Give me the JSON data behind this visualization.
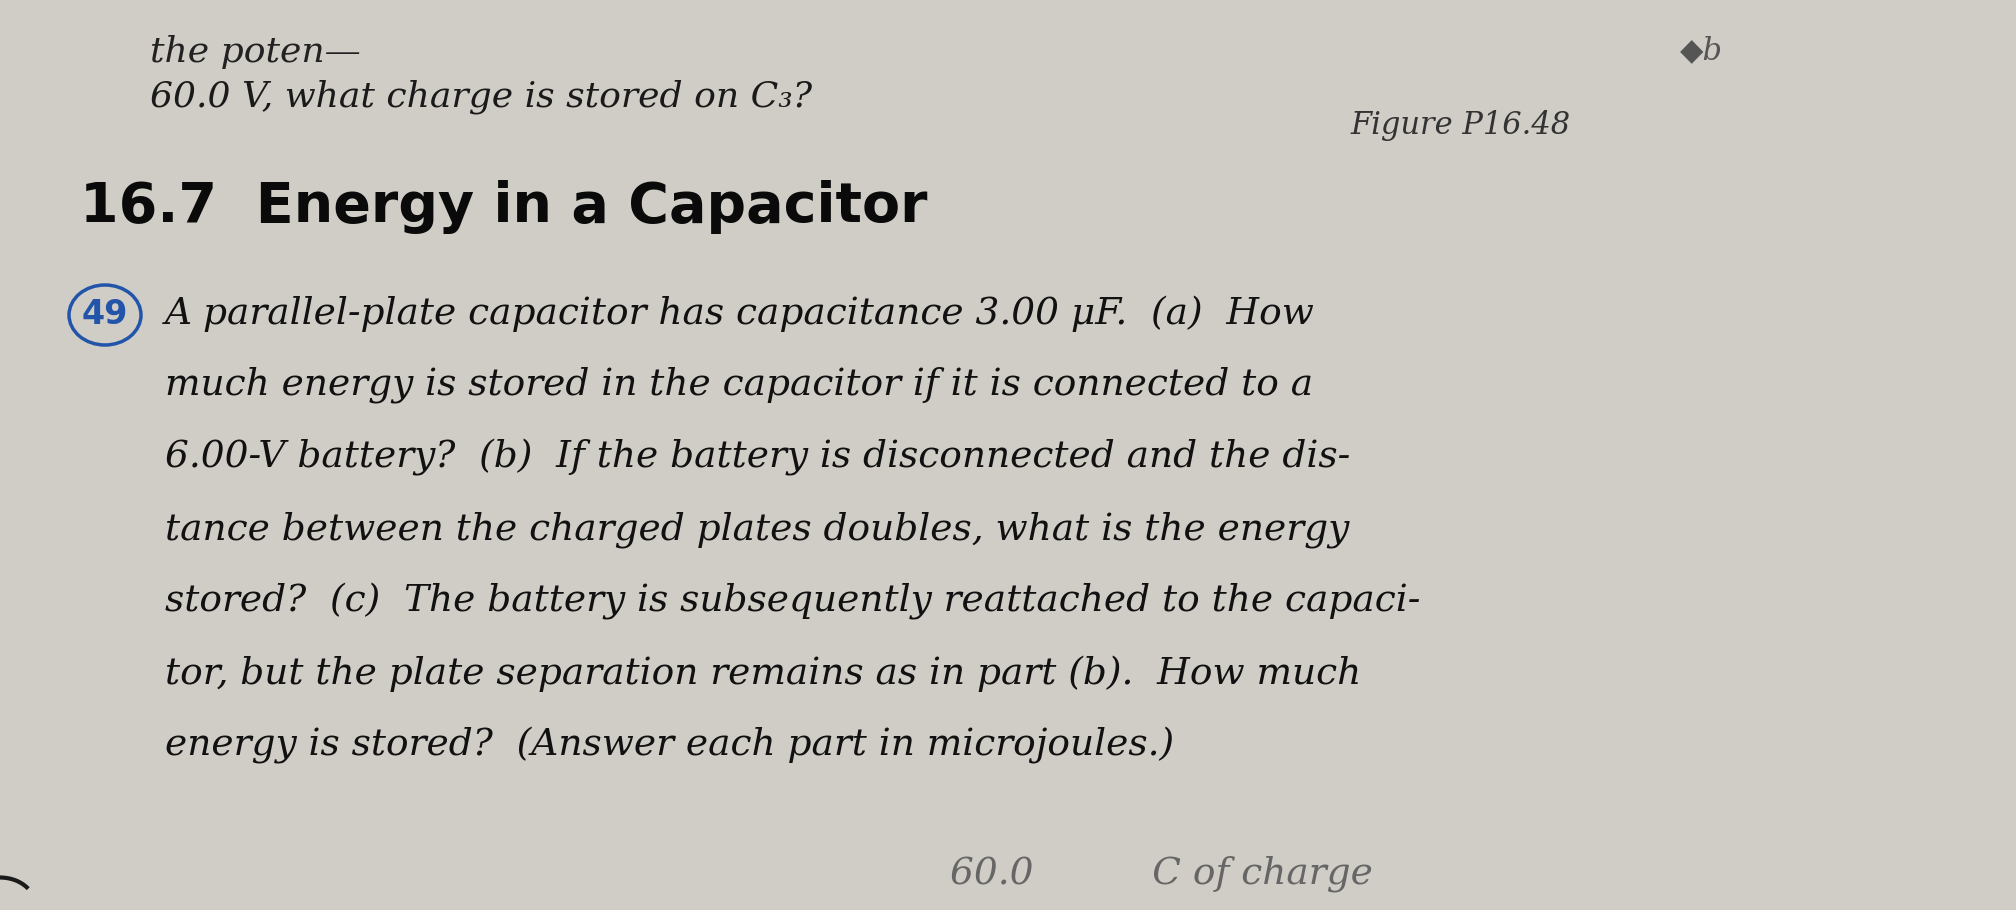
{
  "bg_color": "#d0cdc6",
  "fig_width": 20.16,
  "fig_height": 9.1,
  "dpi": 100,
  "top_line1": "the poten—",
  "top_line2": "60.0 V, what charge is stored on C₃?",
  "top_right": "◆b",
  "figure_label": "Figure P16.48",
  "section_title": "16.7  Energy in a Capacitor",
  "problem_number": "49",
  "problem_text_lines": [
    "A parallel-plate capacitor has capacitance 3.00 μF.  (a)  How",
    "much energy is stored in the capacitor if it is connected to a",
    "6.00-V battery?  (b)  If the battery is disconnected and the dis-",
    "tance between the charged plates doubles, what is the energy",
    "stored?  (c)  The battery is subsequently reattached to the capaci-",
    "tor, but the plate separation remains as in part (b).  How much",
    "energy is stored?  (Answer each part in microjoules.)"
  ],
  "bottom_partial": "60.0          C of charge"
}
